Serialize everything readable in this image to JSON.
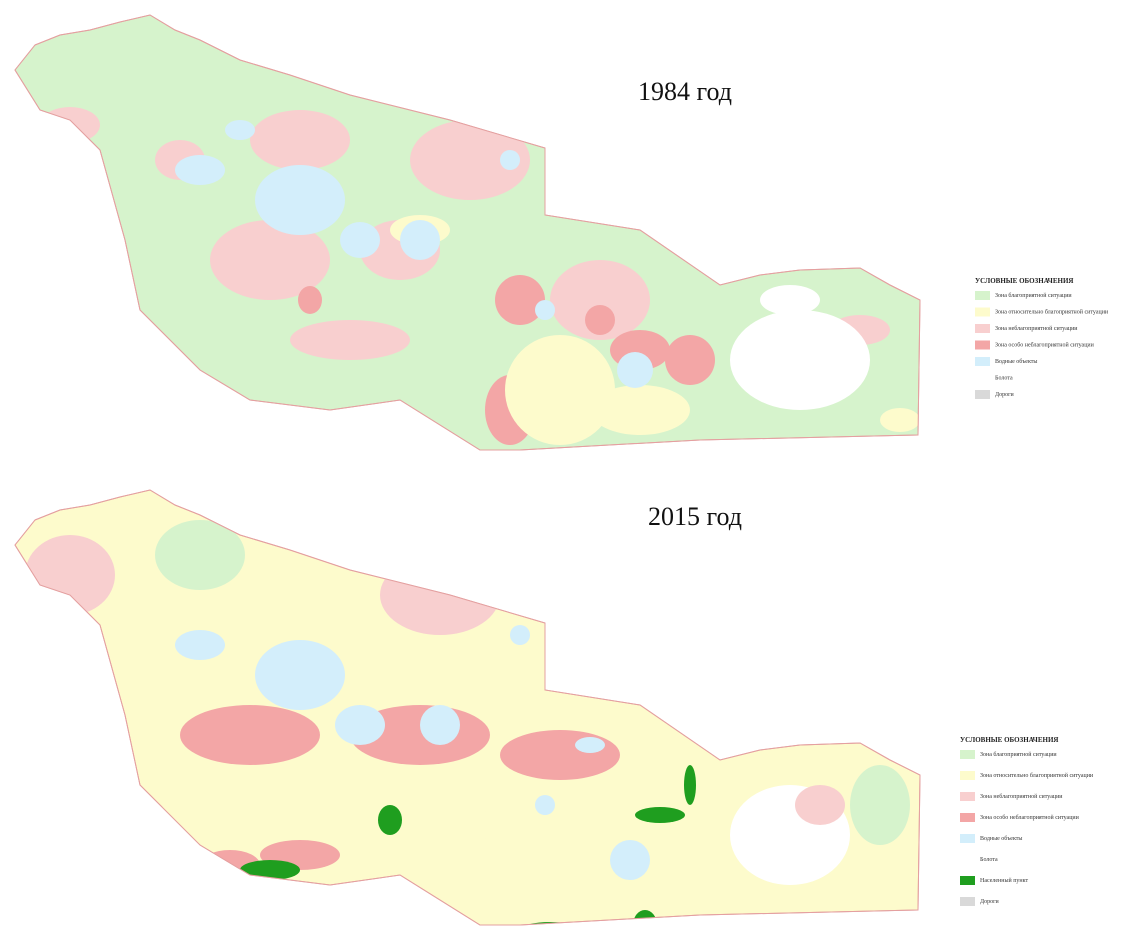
{
  "maps": [
    {
      "title": "1984 год",
      "legend": {
        "title": "УСЛОВНЫЕ ОБОЗНАЧЕНИЯ",
        "items": [
          {
            "label": "Зона благоприятной ситуации",
            "color": "#d6f3cc"
          },
          {
            "label": "Зона относительно благоприятной ситуации",
            "color": "#fdfbcc"
          },
          {
            "label": "Зона неблагоприятной ситуации",
            "color": "#f8cfcf"
          },
          {
            "label": "Зона особо неблагоприятной ситуации",
            "color": "#f3a6a6"
          },
          {
            "label": "Водные объекты",
            "color": "#d3eefb"
          },
          {
            "label": "Болота",
            "color": "#ffffff"
          },
          {
            "label": "Дороги",
            "color": "#d9d9d9"
          }
        ]
      }
    },
    {
      "title": "2015 год",
      "legend": {
        "title": "УСЛОВНЫЕ ОБОЗНАЧЕНИЯ",
        "items": [
          {
            "label": "Зона благоприятной ситуации",
            "color": "#d6f3cc"
          },
          {
            "label": "Зона относительно благоприятной ситуации",
            "color": "#fdfbcc"
          },
          {
            "label": "Зона неблагоприятной ситуации",
            "color": "#f8cfcf"
          },
          {
            "label": "Зона особо неблагоприятной ситуации",
            "color": "#f3a6a6"
          },
          {
            "label": "Водные объекты",
            "color": "#d3eefb"
          },
          {
            "label": "Болота",
            "color": "#ffffff"
          },
          {
            "label": "Населенный пункт",
            "color": "#1f9e1f"
          },
          {
            "label": "Дороги",
            "color": "#d9d9d9"
          }
        ]
      }
    }
  ]
}
